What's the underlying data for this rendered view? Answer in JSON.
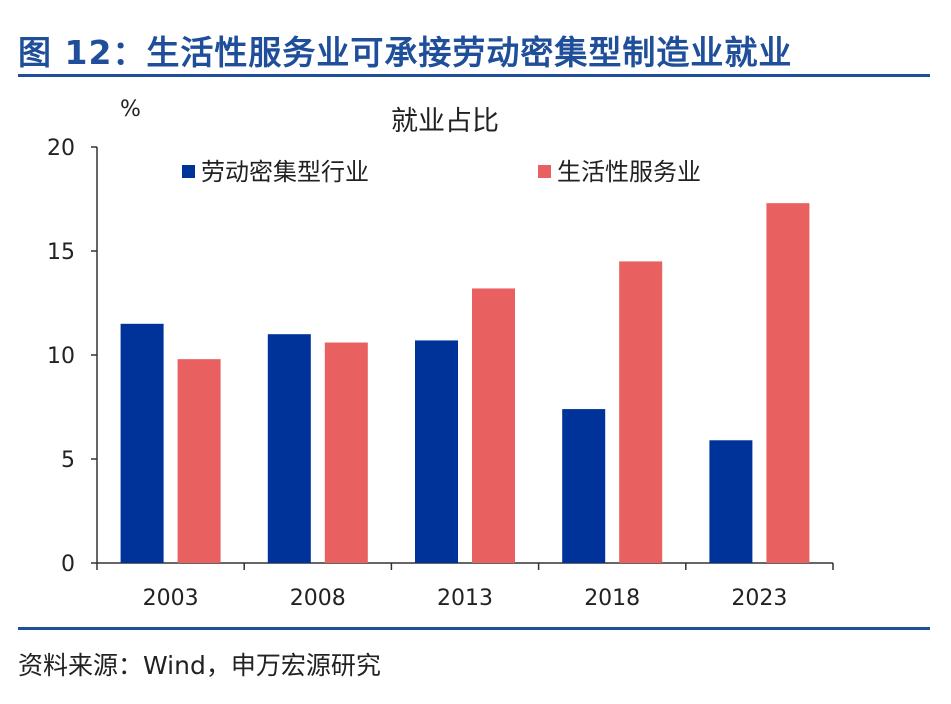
{
  "figure": {
    "title": "图 12：生活性服务业可承接劳动密集型制造业就业",
    "source": "资料来源：Wind，申万宏源研究"
  },
  "colors": {
    "rule": "#1F4E9A",
    "series": [
      "#003399",
      "#E86060"
    ]
  },
  "chart_data": {
    "type": "bar",
    "title": "就业占比",
    "ylabel": "%",
    "xlabel": "",
    "categories": [
      "2003",
      "2008",
      "2013",
      "2018",
      "2023"
    ],
    "series": [
      {
        "name": "劳动密集型行业",
        "values": [
          11.5,
          11.0,
          10.7,
          7.4,
          5.9
        ]
      },
      {
        "name": "生活性服务业",
        "values": [
          9.8,
          10.6,
          13.2,
          14.5,
          17.3
        ]
      }
    ],
    "ylim": [
      0,
      20
    ],
    "yticks": [
      0,
      5,
      10,
      15,
      20
    ],
    "grid": false,
    "legend_position": "top"
  }
}
